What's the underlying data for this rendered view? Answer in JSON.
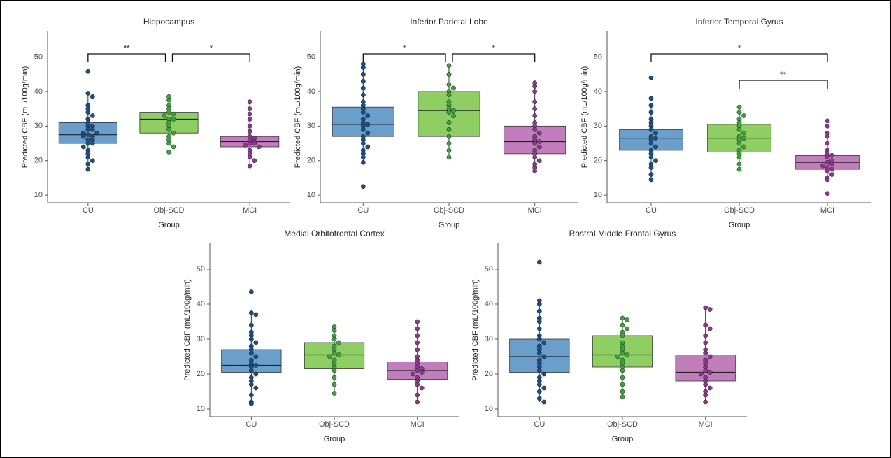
{
  "chart_data": [
    {
      "type": "box",
      "title": "Hippocampus",
      "xlabel": "Group",
      "ylabel": "Predicted CBF (mL/100g/min)",
      "categories": [
        "CU",
        "Obj-SCD",
        "MCI"
      ],
      "box_colors": [
        "#6a9fcc",
        "#8fce62",
        "#c27dbd"
      ],
      "point_colors": [
        "#1d4f82",
        "#3da33c",
        "#8a3a8c"
      ],
      "ylim": [
        7.8,
        57.4
      ],
      "yticks": [
        10,
        20,
        30,
        40,
        50
      ],
      "boxes": [
        {
          "low": 17.5,
          "q1": 25,
          "median": 27.5,
          "q3": 31,
          "high": 39.5,
          "points": [
            45.8,
            39.5,
            38.5,
            36,
            35,
            34,
            33,
            32,
            31,
            30,
            30,
            29,
            29,
            28,
            28,
            27.5,
            27,
            27,
            26,
            26,
            25,
            25,
            24,
            23,
            22,
            21,
            20,
            19,
            17.5
          ]
        },
        {
          "low": 22.5,
          "q1": 28,
          "median": 32,
          "q3": 34,
          "high": 38.5,
          "points": [
            38.5,
            37.5,
            36,
            35,
            34,
            33.5,
            33,
            32,
            32,
            31,
            30,
            29,
            28,
            27,
            26,
            25,
            24,
            22.5
          ]
        },
        {
          "low": 18.5,
          "q1": 24,
          "median": 25.5,
          "q3": 27,
          "high": 37,
          "points": [
            37,
            35,
            33.5,
            32,
            30,
            28.5,
            27,
            26.5,
            26,
            25.5,
            25,
            25,
            24.5,
            24,
            23,
            22,
            21,
            20,
            18.5
          ]
        }
      ],
      "brackets": [
        {
          "from": 0,
          "to": 1,
          "label": "**"
        },
        {
          "from": 1,
          "to": 2,
          "label": "*"
        }
      ]
    },
    {
      "type": "box",
      "title": "Inferior Parietal Lobe",
      "xlabel": "Group",
      "ylabel": "Predicted CBF (mL/100g/min)",
      "categories": [
        "CU",
        "Obj-SCD",
        "MCI"
      ],
      "box_colors": [
        "#6a9fcc",
        "#8fce62",
        "#c27dbd"
      ],
      "point_colors": [
        "#1d4f82",
        "#3da33c",
        "#8a3a8c"
      ],
      "ylim": [
        7.8,
        57.4
      ],
      "yticks": [
        10,
        20,
        30,
        40,
        50
      ],
      "boxes": [
        {
          "low": 19.5,
          "q1": 27,
          "median": 30.5,
          "q3": 35.5,
          "high": 48,
          "points": [
            48,
            47,
            45,
            43,
            41,
            39,
            37,
            36,
            35,
            34,
            33,
            32,
            31,
            30.5,
            30,
            29,
            28,
            27,
            26,
            25,
            24,
            23,
            22,
            21,
            19.5,
            12.5
          ]
        },
        {
          "low": 21,
          "q1": 27,
          "median": 34.5,
          "q3": 40,
          "high": 47.5,
          "points": [
            47.5,
            45,
            42,
            41,
            40,
            39,
            37,
            36,
            35,
            34.5,
            34,
            33,
            31,
            29,
            27,
            25,
            23,
            21
          ]
        },
        {
          "low": 17,
          "q1": 22,
          "median": 25.5,
          "q3": 30,
          "high": 42.5,
          "points": [
            42.5,
            41.5,
            40,
            37,
            35,
            33,
            31,
            30,
            29,
            28,
            27,
            26,
            25.5,
            25,
            24,
            23,
            22,
            21,
            20,
            19,
            18,
            17
          ]
        }
      ],
      "brackets": [
        {
          "from": 0,
          "to": 1,
          "label": "*"
        },
        {
          "from": 1,
          "to": 2,
          "label": "*"
        }
      ]
    },
    {
      "type": "box",
      "title": "Inferior Temporal Gyrus",
      "xlabel": "Group",
      "ylabel": "Predicted CBF (mL/100g/min)",
      "categories": [
        "CU",
        "Obj-SCD",
        "MCI"
      ],
      "box_colors": [
        "#6a9fcc",
        "#8fce62",
        "#c27dbd"
      ],
      "point_colors": [
        "#1d4f82",
        "#3da33c",
        "#8a3a8c"
      ],
      "ylim": [
        7.8,
        57.4
      ],
      "yticks": [
        10,
        20,
        30,
        40,
        50
      ],
      "boxes": [
        {
          "low": 14.5,
          "q1": 23,
          "median": 26.5,
          "q3": 29,
          "high": 36,
          "points": [
            44,
            38,
            36,
            34,
            32,
            31,
            30,
            29,
            28,
            27,
            26.5,
            26,
            25,
            24,
            23,
            22,
            21,
            20,
            19,
            18,
            16,
            14.5
          ]
        },
        {
          "low": 17.5,
          "q1": 22.5,
          "median": 26.5,
          "q3": 30.5,
          "high": 35.5,
          "points": [
            35.5,
            34,
            33,
            32,
            31,
            30,
            29,
            28,
            27,
            26.5,
            26,
            25,
            24,
            23,
            22,
            21,
            19,
            17.5
          ]
        },
        {
          "low": 14.5,
          "q1": 17.5,
          "median": 19.5,
          "q3": 21.5,
          "high": 27.5,
          "points": [
            31.5,
            30,
            28,
            27,
            25,
            23,
            22,
            21.5,
            21,
            20,
            19.5,
            19,
            18.5,
            18,
            17.5,
            17,
            16,
            15,
            14.5,
            10.5
          ]
        }
      ],
      "brackets": [
        {
          "from": 1,
          "to": 2,
          "label": "**"
        },
        {
          "from": 0,
          "to": 2,
          "label": "*"
        }
      ]
    },
    {
      "type": "box",
      "title": "Medial Orbitofrontal Cortex",
      "xlabel": "Group",
      "ylabel": "Predicted CBF (mL/100g/min)",
      "categories": [
        "CU",
        "Obj-SCD",
        "MCI"
      ],
      "box_colors": [
        "#6a9fcc",
        "#8fce62",
        "#c27dbd"
      ],
      "point_colors": [
        "#1d4f82",
        "#3da33c",
        "#8a3a8c"
      ],
      "ylim": [
        7.8,
        57.4
      ],
      "yticks": [
        10,
        20,
        30,
        40,
        50
      ],
      "boxes": [
        {
          "low": 11.5,
          "q1": 20.5,
          "median": 22.5,
          "q3": 27,
          "high": 37.5,
          "points": [
            43.5,
            37.5,
            37,
            34,
            32,
            31,
            30,
            29,
            28,
            27,
            26,
            25,
            24,
            23,
            22.5,
            22,
            21,
            20,
            19,
            18,
            17,
            16,
            14,
            12,
            11.5
          ]
        },
        {
          "low": 14.5,
          "q1": 21.5,
          "median": 25.5,
          "q3": 29,
          "high": 33.5,
          "points": [
            33.5,
            32.5,
            31,
            30,
            29,
            28,
            27,
            26,
            25.5,
            25,
            24,
            23,
            22,
            21,
            19,
            17,
            14.5
          ]
        },
        {
          "low": 12,
          "q1": 18.5,
          "median": 21,
          "q3": 23.5,
          "high": 35,
          "points": [
            35,
            33,
            31,
            29,
            27,
            25,
            24,
            23,
            22,
            21.5,
            21,
            20.5,
            20,
            19,
            18,
            17,
            16,
            14,
            12
          ]
        }
      ],
      "brackets": []
    },
    {
      "type": "box",
      "title": "Rostral Middle Frontal Gyrus",
      "xlabel": "Group",
      "ylabel": "Predicted CBF (mL/100g/min)",
      "categories": [
        "CU",
        "Obj-SCD",
        "MCI"
      ],
      "box_colors": [
        "#6a9fcc",
        "#8fce62",
        "#c27dbd"
      ],
      "point_colors": [
        "#1d4f82",
        "#3da33c",
        "#8a3a8c"
      ],
      "ylim": [
        7.8,
        57.4
      ],
      "yticks": [
        10,
        20,
        30,
        40,
        50
      ],
      "boxes": [
        {
          "low": 12,
          "q1": 20.5,
          "median": 25,
          "q3": 30,
          "high": 41,
          "points": [
            52,
            41,
            40,
            38,
            36,
            35,
            33,
            31,
            30,
            29,
            28,
            27,
            26,
            25,
            24,
            23,
            22,
            21,
            20,
            19,
            18,
            17,
            16,
            15,
            13,
            12
          ]
        },
        {
          "low": 13.5,
          "q1": 22,
          "median": 25.5,
          "q3": 31,
          "high": 36,
          "points": [
            36,
            35.5,
            34,
            33,
            32,
            31,
            29,
            28,
            27,
            26,
            25.5,
            25,
            24,
            23,
            22,
            21,
            19,
            17,
            15,
            13.5
          ]
        },
        {
          "low": 12,
          "q1": 18,
          "median": 20.5,
          "q3": 25.5,
          "high": 39,
          "points": [
            39,
            38.5,
            34,
            33,
            31,
            29,
            27,
            26,
            25,
            24,
            23,
            22,
            21,
            20.5,
            20,
            19,
            18,
            17,
            16,
            15,
            14,
            12
          ]
        }
      ],
      "brackets": []
    }
  ]
}
